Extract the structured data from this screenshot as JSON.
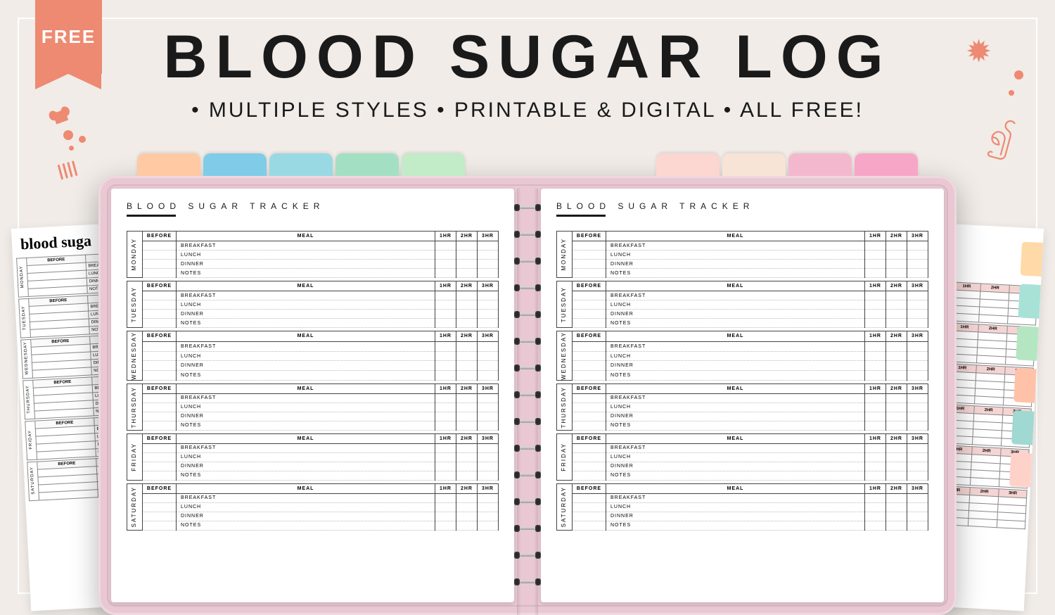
{
  "ribbon_label": "FREE",
  "title": "BLOOD SUGAR LOG",
  "subtitle": "• MULTIPLE STYLES • PRINTABLE & DIGITAL • ALL FREE!",
  "colors": {
    "accent": "#ed8a71",
    "background": "#f1ece8",
    "planner_cover": "#e9c8d3",
    "text": "#1a1a1a"
  },
  "tabs_left": [
    "#ffc9a3",
    "#7fcce8",
    "#99d9e3",
    "#a3e0c3",
    "#c2ecc7"
  ],
  "tabs_right": [
    "#fcd6d0",
    "#f7e4d6",
    "#f4b8ce",
    "#f7a6c7"
  ],
  "right_sheet_tabs": [
    "#ffd9a8",
    "#a8e2d6",
    "#b5e6c2",
    "#ffc2a8",
    "#9fd9d1",
    "#ffd2c9"
  ],
  "page_header": "BLOOD SUGAR TRACKER",
  "columns": {
    "before": "BEFORE",
    "meal": "MEAL",
    "hr1": "1HR",
    "hr2": "2HR",
    "hr3": "3HR"
  },
  "rows": [
    "BREAKFAST",
    "LUNCH",
    "DINNER",
    "NOTES"
  ],
  "days": [
    "MONDAY",
    "TUESDAY",
    "WEDNESDAY",
    "THURSDAY",
    "FRIDAY",
    "SATURDAY"
  ],
  "back_left_title": "blood suga",
  "back_left_rows": [
    "BREAK",
    "LUNC",
    "DINN",
    "NOT"
  ],
  "back_right_hrs": [
    "1HR",
    "2HR",
    "3HR"
  ]
}
